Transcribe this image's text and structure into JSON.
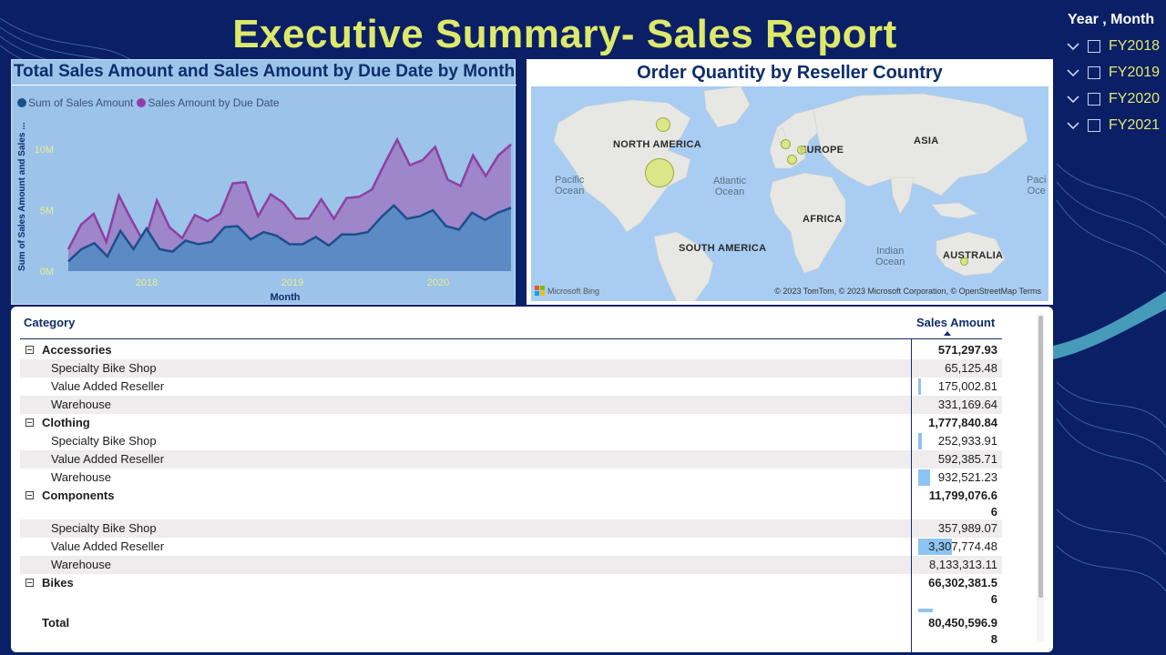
{
  "report": {
    "title": "Executive Summary- Sales Report"
  },
  "slicer": {
    "header": "Year , Month",
    "items": [
      {
        "label": "FY2018"
      },
      {
        "label": "FY2019"
      },
      {
        "label": "FY2020"
      },
      {
        "label": "FY2021"
      }
    ]
  },
  "line_chart": {
    "title": "Total Sales Amount and Sales Amount by Due Date by Month",
    "legend": [
      "Sum of Sales Amount",
      "Sales Amount by Due Date"
    ],
    "ylabel": "Sum of Sales Amount and Sales ...",
    "xlabel": "Month",
    "colors": {
      "sales": "#1b4f8c",
      "due": "#8e3fa3",
      "due_fill": "#9d86c9",
      "sales_fill": "#5b8ac4",
      "tick": "#e8ef8a"
    }
  },
  "chart_data": {
    "type": "area",
    "title": "Total Sales Amount and Sales Amount by Due Date by Month",
    "xlabel": "Month",
    "ylabel": "Sum of Sales Amount and Sales ...",
    "x_tick_labels": [
      "2018",
      "2019",
      "2020"
    ],
    "y_tick_labels": [
      "0M",
      "5M",
      "10M"
    ],
    "ylim": [
      0,
      11500000
    ],
    "series": [
      {
        "name": "Sum of Sales Amount",
        "values": [
          0.8,
          1.8,
          2.3,
          1.2,
          3.3,
          1.8,
          3.5,
          1.8,
          1.6,
          2.5,
          2.2,
          2.4,
          3.6,
          3.7,
          2.6,
          3.2,
          2.9,
          2.2,
          2.2,
          2.8,
          2.1,
          3.0,
          3.0,
          3.2,
          4.4,
          5.4,
          4.3,
          4.5,
          5.0,
          3.7,
          3.4,
          4.8,
          4.2,
          4.8,
          5.2
        ]
      },
      {
        "name": "Sales Amount by Due Date",
        "values": [
          1.8,
          3.8,
          4.7,
          2.4,
          6.2,
          4.2,
          2.3,
          5.8,
          3.6,
          2.7,
          4.6,
          4.1,
          4.7,
          7.2,
          7.3,
          4.5,
          6.3,
          5.6,
          4.3,
          4.3,
          5.9,
          4.3,
          6.0,
          6.1,
          6.7,
          8.8,
          10.8,
          8.7,
          9.1,
          10.2,
          7.5,
          7.0,
          9.5,
          7.8,
          9.5,
          10.4
        ]
      }
    ]
  },
  "map": {
    "title": "Order Quantity by Reseller Country",
    "labels": {
      "north_america": "NORTH AMERICA",
      "europe": "EUROPE",
      "asia": "ASIA",
      "africa": "AFRICA",
      "south_america": "SOUTH AMERICA",
      "australia": "AUSTRALIA"
    },
    "oceans": {
      "pacific_1": "Pacific\nOcean",
      "atlantic": "Atlantic\nOcean",
      "indian": "Indian\nOcean",
      "pacific_2": "Paci\nOce"
    },
    "logo": "Microsoft Bing",
    "attribution": "© 2023 TomTom, © 2023 Microsoft Corporation, © OpenStreetMap   Terms"
  },
  "table": {
    "columns": {
      "category": "Category",
      "amount": "Sales Amount"
    },
    "rows": [
      {
        "category": "Accessories",
        "amount": "571,297.93"
      },
      {
        "category": "Specialty Bike Shop",
        "amount": "65,125.48"
      },
      {
        "category": "Value Added Reseller",
        "amount": "175,002.81"
      },
      {
        "category": "Warehouse",
        "amount": "331,169.64"
      },
      {
        "category": "Clothing",
        "amount": "1,777,840.84"
      },
      {
        "category": "Specialty Bike Shop",
        "amount": "252,933.91"
      },
      {
        "category": "Value Added Reseller",
        "amount": "592,385.71"
      },
      {
        "category": "Warehouse",
        "amount": "932,521.23"
      },
      {
        "category": "Components",
        "amount": "11,799,076.6\n6"
      },
      {
        "category": "Specialty Bike Shop",
        "amount": "357,989.07"
      },
      {
        "category": "Value Added Reseller",
        "amount": "3,307,774.48"
      },
      {
        "category": "Warehouse",
        "amount": "8,133,313.11"
      },
      {
        "category": "Bikes",
        "amount": "66,302,381.5\n6"
      }
    ],
    "total": {
      "category": "Total",
      "amount": "80,450,596.9\n8"
    },
    "bar_fractions": [
      0.01,
      0.03,
      0.05,
      0.04,
      0.09,
      0.14,
      0.05,
      0.41,
      1.0
    ]
  }
}
